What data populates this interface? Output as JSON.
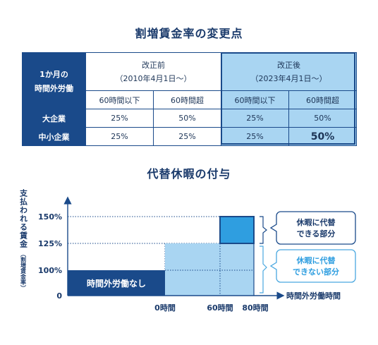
{
  "title_main": "割増賃金率の変更点",
  "table": {
    "corner_line1": "1か月の",
    "corner_line2": "時間外労働",
    "before_label": "改正前",
    "before_date": "（2010年4月1日〜）",
    "after_label": "改正後",
    "after_date": "（2023年4月1日〜）",
    "col_under60": "60時間以下",
    "col_over60": "60時間超",
    "rows": [
      {
        "label": "大企業",
        "before_under": "25%",
        "before_over": "50%",
        "after_under": "25%",
        "after_over": "50%"
      },
      {
        "label": "中小企業",
        "before_under": "25%",
        "before_over": "25%",
        "after_under": "25%",
        "after_over": "50%"
      }
    ]
  },
  "title_sub": "代替休暇の付与",
  "diagram": {
    "y_axis_label": "支払われる賃金",
    "y_axis_note": "（割増賃金率）",
    "x_axis_label": "時間外労働時間",
    "y_ticks": [
      "150%",
      "125%",
      "100%",
      "0"
    ],
    "x_ticks": [
      "0時間",
      "60時間",
      "80時間"
    ],
    "base_block_label": "時間外労働なし",
    "callout1_line1": "休暇に代替",
    "callout1_line2": "できる部分",
    "callout2_line1": "休暇に代替",
    "callout2_line2": "できない部分",
    "colors": {
      "navy": "#1a4a8a",
      "light_blue": "#a9d5f2",
      "mid_blue": "#2f9ee0",
      "callout_blue": "#4aa8e0"
    }
  }
}
